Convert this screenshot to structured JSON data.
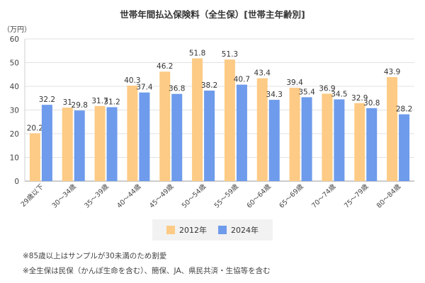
{
  "chart_data": {
    "type": "bar",
    "title": "世帯年間払込保険料（全生保）[世帯主年齢別]",
    "unit_label": "（万円）",
    "ylim": [
      0,
      60
    ],
    "yticks": [
      0,
      10,
      20,
      30,
      40,
      50,
      60
    ],
    "grid": true,
    "legend_position": "bottom",
    "categories": [
      "29歳以下",
      "30〜34歳",
      "35〜39歳",
      "40〜44歳",
      "45〜49歳",
      "50〜54歳",
      "55〜59歳",
      "60〜64歳",
      "65〜69歳",
      "70〜74歳",
      "75〜79歳",
      "80〜84歳"
    ],
    "series": [
      {
        "name": "2012年",
        "color": "#FDCB85",
        "values": [
          20.2,
          31,
          31.7,
          40.3,
          46.2,
          51.8,
          51.3,
          43.4,
          39.4,
          36.9,
          32.9,
          43.9
        ]
      },
      {
        "name": "2024年",
        "color": "#6E9BEB",
        "values": [
          32.2,
          29.8,
          31.2,
          37.4,
          36.8,
          38.2,
          40.7,
          34.3,
          35.4,
          34.5,
          30.8,
          28.2
        ]
      }
    ]
  },
  "notes": [
    "※85歳以上はサンプルが30未満のため割愛",
    "※全生保は民保（かんぽ生命を含む）、簡保、JA、県民共済・生協等を含む"
  ]
}
